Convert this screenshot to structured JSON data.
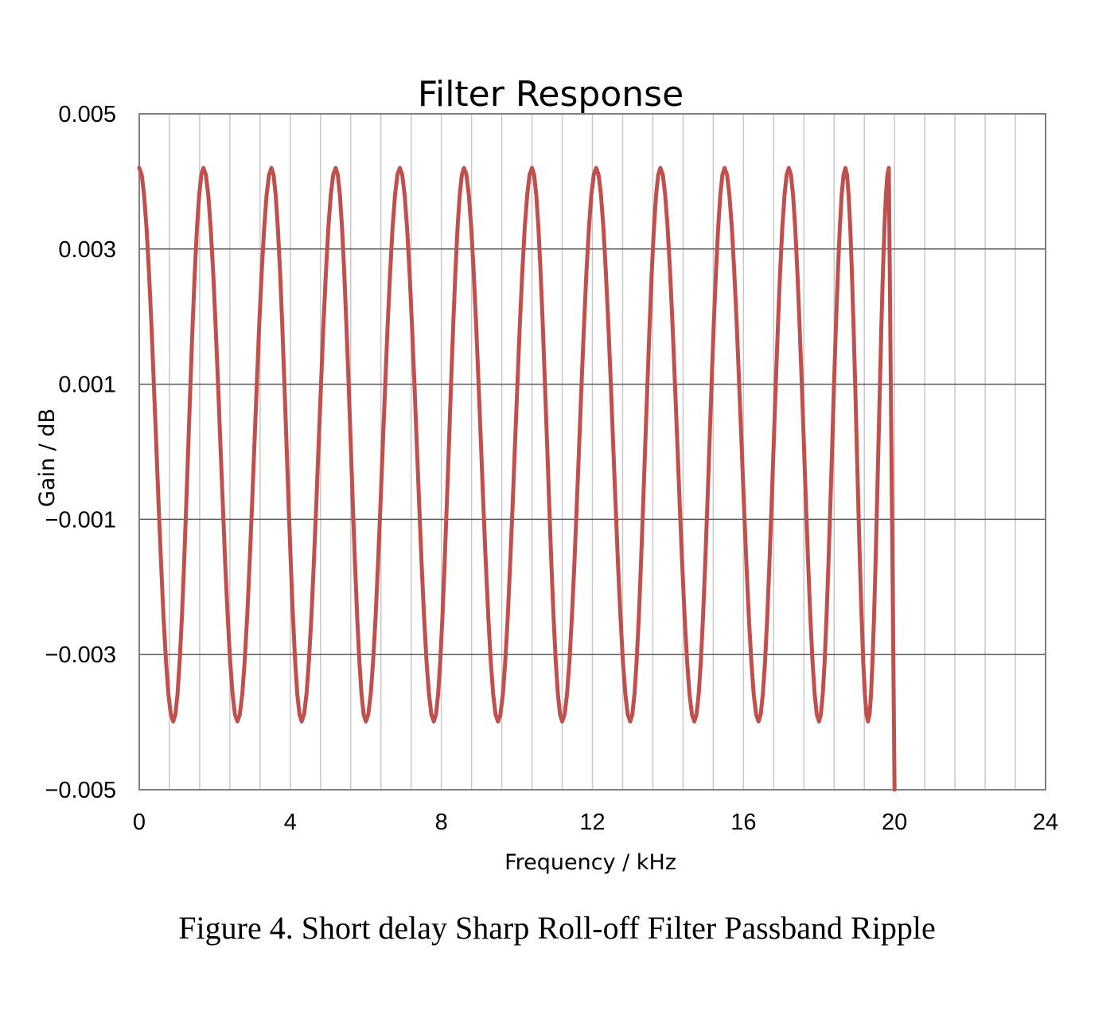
{
  "chart_data": {
    "type": "line",
    "title": "Filter Response",
    "xlabel": "Frequency / kHz",
    "ylabel": "Gain / dB",
    "xlim": [
      0,
      24
    ],
    "ylim": [
      -0.005,
      0.005
    ],
    "x_ticks": [
      0,
      4,
      8,
      12,
      16,
      20,
      24
    ],
    "x_tick_labels": [
      "0",
      "4",
      "8",
      "12",
      "16",
      "20",
      "24"
    ],
    "y_ticks": [
      0.005,
      0.003,
      0.001,
      -0.001,
      -0.003,
      -0.005
    ],
    "y_tick_labels": [
      "0.005",
      "0.003",
      "0.001",
      "−0.001",
      "−0.003",
      "−0.005"
    ],
    "x_minor_step": 0.8,
    "grid": true,
    "legend": "none",
    "series_color": "#c0504d",
    "ripple": {
      "amplitude": 0.0042,
      "peak_frequencies": [
        0,
        1.7,
        3.5,
        5.2,
        6.9,
        8.6,
        10.4,
        12.1,
        13.8,
        15.5,
        17.2,
        18.7,
        19.85
      ],
      "trough_frequencies": [
        0.9,
        2.6,
        4.3,
        6.0,
        7.8,
        9.5,
        11.2,
        13.0,
        14.7,
        16.4,
        18.0,
        19.3
      ],
      "cutoff_frequency": 20.0,
      "end_value": -0.005
    }
  },
  "caption": "Figure 4. Short delay Sharp Roll-off Filter Passband Ripple"
}
